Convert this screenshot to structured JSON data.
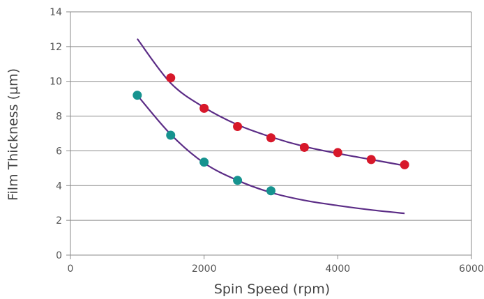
{
  "chart_data": {
    "type": "scatter",
    "title": "",
    "xlabel": "Spin Speed (rpm)",
    "ylabel": "Film Thickness (µm)",
    "xlim": [
      0,
      6000
    ],
    "ylim": [
      0,
      14
    ],
    "xticks": [
      0,
      2000,
      4000,
      6000
    ],
    "yticks": [
      0,
      2,
      4,
      6,
      8,
      10,
      12,
      14
    ],
    "grid": "horizontal",
    "legend": "none",
    "series": [
      {
        "color": "#d7182a",
        "points": [
          [
            1500,
            10.2
          ],
          [
            2000,
            8.45
          ],
          [
            2500,
            7.4
          ],
          [
            3000,
            6.75
          ],
          [
            3500,
            6.2
          ],
          [
            4000,
            5.9
          ],
          [
            4500,
            5.5
          ],
          [
            5000,
            5.2
          ]
        ]
      },
      {
        "color": "#16938f",
        "points": [
          [
            1000,
            9.2
          ],
          [
            1500,
            6.9
          ],
          [
            2000,
            5.35
          ],
          [
            2500,
            4.3
          ],
          [
            3000,
            3.7
          ]
        ]
      }
    ],
    "fit_curves": [
      {
        "color": "#5b2c86",
        "x_range": [
          1000,
          5000
        ],
        "points": [
          [
            1000,
            12.45
          ],
          [
            1500,
            9.9
          ],
          [
            2000,
            8.5
          ],
          [
            2500,
            7.5
          ],
          [
            3000,
            6.8
          ],
          [
            3500,
            6.25
          ],
          [
            4000,
            5.85
          ],
          [
            4500,
            5.5
          ],
          [
            5000,
            5.15
          ]
        ]
      },
      {
        "color": "#5b2c86",
        "x_range": [
          1000,
          5000
        ],
        "points": [
          [
            1000,
            9.2
          ],
          [
            1500,
            6.95
          ],
          [
            2000,
            5.3
          ],
          [
            2500,
            4.3
          ],
          [
            3000,
            3.6
          ],
          [
            3500,
            3.15
          ],
          [
            4000,
            2.85
          ],
          [
            4500,
            2.6
          ],
          [
            5000,
            2.4
          ]
        ]
      }
    ]
  }
}
